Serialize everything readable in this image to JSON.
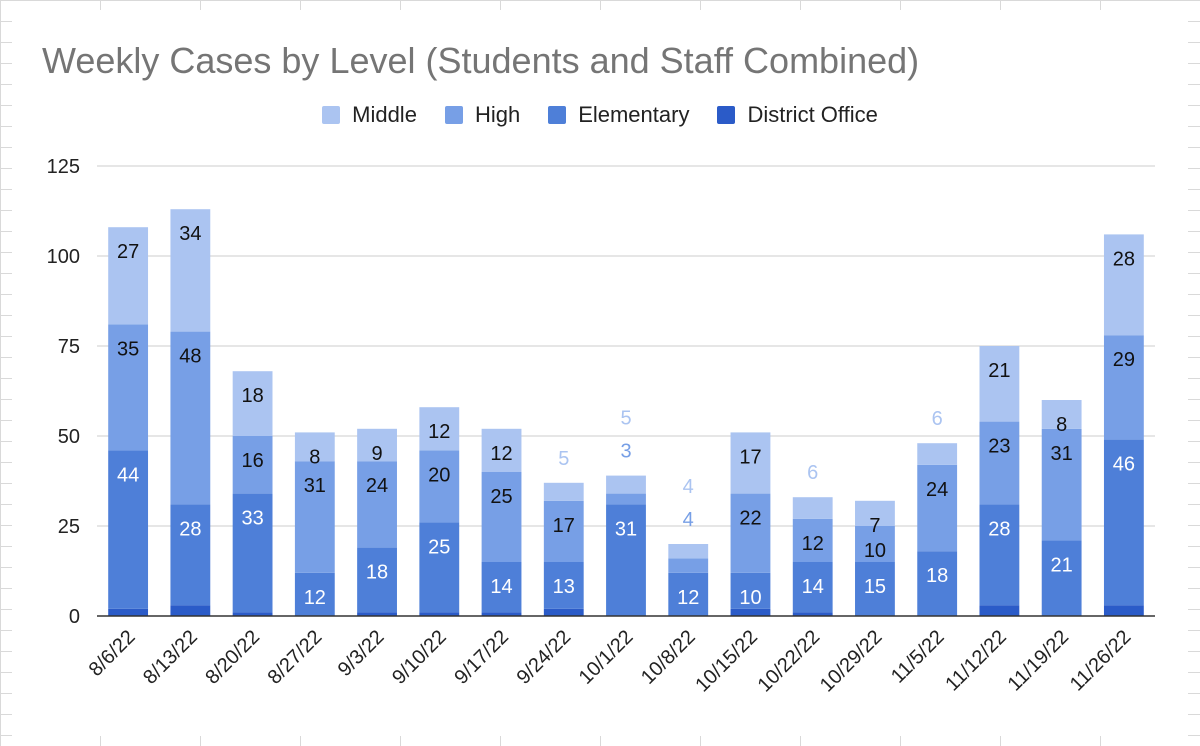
{
  "chart_data": {
    "type": "bar",
    "stacked": true,
    "title": "Weekly Cases by Level (Students and Staff Combined)",
    "xlabel": "",
    "ylabel": "",
    "ylim": [
      0,
      125
    ],
    "yticks": [
      0,
      25,
      50,
      75,
      100,
      125
    ],
    "grid": true,
    "legend_position": "top",
    "categories": [
      "8/6/22",
      "8/13/22",
      "8/20/22",
      "8/27/22",
      "9/3/22",
      "9/10/22",
      "9/17/22",
      "9/24/22",
      "10/1/22",
      "10/8/22",
      "10/15/22",
      "10/22/22",
      "10/29/22",
      "11/5/22",
      "11/12/22",
      "11/19/22",
      "11/26/22"
    ],
    "series": [
      {
        "name": "District Office",
        "color": "#2b5bc8",
        "values": [
          2,
          3,
          1,
          0,
          1,
          1,
          1,
          2,
          0,
          0,
          2,
          1,
          0,
          0,
          3,
          0,
          3
        ]
      },
      {
        "name": "Elementary",
        "color": "#4e7fd8",
        "values": [
          44,
          28,
          33,
          12,
          18,
          25,
          14,
          13,
          31,
          12,
          10,
          14,
          15,
          18,
          28,
          21,
          46
        ]
      },
      {
        "name": "High",
        "color": "#779fe6",
        "values": [
          35,
          48,
          16,
          31,
          24,
          20,
          25,
          17,
          3,
          4,
          22,
          12,
          10,
          24,
          23,
          31,
          29
        ]
      },
      {
        "name": "Middle",
        "color": "#abc4f1",
        "values": [
          27,
          34,
          18,
          8,
          9,
          12,
          12,
          5,
          5,
          4,
          17,
          6,
          7,
          6,
          21,
          8,
          28
        ]
      }
    ],
    "data_labels": {
      "Elementary": [
        "44",
        "28",
        "33",
        "12",
        "18",
        "25",
        "14",
        "13",
        "31",
        "12",
        "10",
        "14",
        "15",
        "18",
        "28",
        "21",
        "46"
      ],
      "High": [
        "35",
        "48",
        "16",
        "31",
        "24",
        "20",
        "25",
        "17",
        "3",
        "4",
        "22",
        "12",
        "10",
        "24",
        "23",
        "31",
        "29"
      ],
      "Middle": [
        "27",
        "34",
        "18",
        "8",
        "9",
        "12",
        "12",
        "5",
        "5",
        "4",
        "17",
        "6",
        "7",
        "6",
        "21",
        "8",
        "28"
      ]
    }
  },
  "legend": {
    "items": [
      {
        "label": "Middle",
        "color": "#abc4f1"
      },
      {
        "label": "High",
        "color": "#779fe6"
      },
      {
        "label": "Elementary",
        "color": "#4e7fd8"
      },
      {
        "label": "District Office",
        "color": "#2b5bc8"
      }
    ]
  }
}
